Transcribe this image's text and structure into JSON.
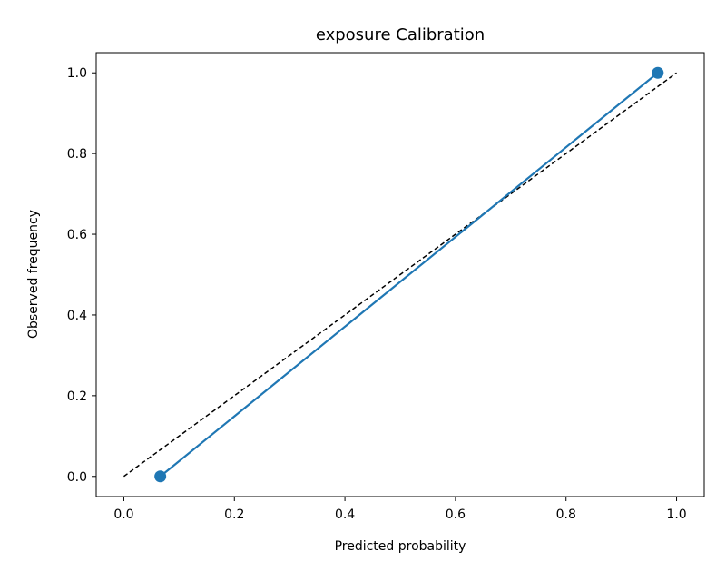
{
  "chart_data": {
    "type": "line",
    "title": "exposure Calibration",
    "xlabel": "Predicted probability",
    "ylabel": "Observed frequency",
    "xlim": [
      -0.05,
      1.05
    ],
    "ylim": [
      -0.05,
      1.05
    ],
    "xticks": [
      "0.0",
      "0.2",
      "0.4",
      "0.6",
      "0.8",
      "1.0"
    ],
    "yticks": [
      "0.0",
      "0.2",
      "0.4",
      "0.6",
      "0.8",
      "1.0"
    ],
    "grid": false,
    "series": [
      {
        "x": [
          0.066,
          0.966
        ],
        "y": [
          0.0,
          1.0
        ],
        "color": "#1f77b4",
        "marker": "circle"
      }
    ],
    "reference_line": {
      "x": [
        0.0,
        1.0
      ],
      "y": [
        0.0,
        1.0
      ],
      "color": "#000000",
      "style": "dashed"
    }
  }
}
